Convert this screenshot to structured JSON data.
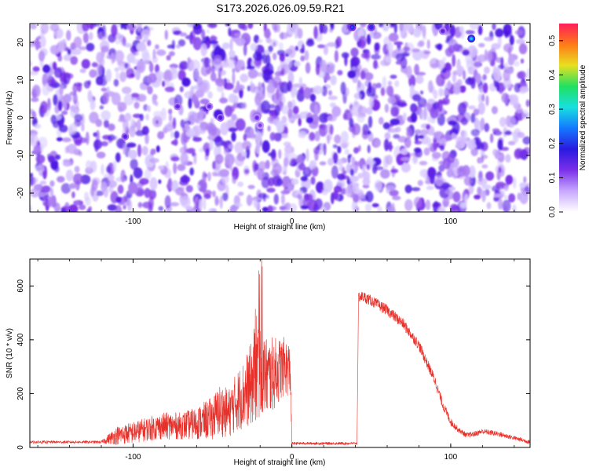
{
  "title": "S173.2026.026.09.59.R21",
  "colors": {
    "snr_line": "#e8302a",
    "colormap": [
      "#ffffff",
      "#c8a8ff",
      "#7a2fe8",
      "#2a1ae0",
      "#1478ff",
      "#18e0e0",
      "#20e060",
      "#e8e020",
      "#ff7a18",
      "#ff1e5a"
    ]
  },
  "chart_data": [
    {
      "type": "heatmap",
      "xlabel": "Height of straight line (km)",
      "ylabel": "Frequency (Hz)",
      "xlim": [
        -165,
        150
      ],
      "ylim": [
        -25,
        25
      ],
      "x_ticks": [
        "-100",
        "0",
        "100"
      ],
      "x_tick_values": [
        -100,
        0,
        100
      ],
      "y_ticks": [
        "-20",
        "-10",
        "0",
        "10",
        "20"
      ],
      "y_tick_values": [
        -20,
        -10,
        0,
        10,
        20
      ],
      "colorbar": {
        "label": "Normalized spectral amplitude",
        "range": [
          0,
          0.55
        ],
        "ticks": [
          "0.0",
          "0.1",
          "0.2",
          "0.3",
          "0.4",
          "0.5"
        ],
        "tick_values": [
          0.0,
          0.1,
          0.2,
          0.3,
          0.4,
          0.5
        ]
      },
      "hotspots": [
        {
          "x": -105,
          "y": -5,
          "value": 0.16
        },
        {
          "x": -72,
          "y": 3,
          "value": 0.15
        },
        {
          "x": -52,
          "y": 3,
          "value": 0.14
        },
        {
          "x": -45,
          "y": 0,
          "value": 0.17
        },
        {
          "x": -22,
          "y": 0,
          "value": 0.14
        },
        {
          "x": -20,
          "y": -2,
          "value": 0.12
        },
        {
          "x": 38,
          "y": 24,
          "value": 0.22
        },
        {
          "x": 50,
          "y": 24,
          "value": 0.2
        },
        {
          "x": 95,
          "y": 23,
          "value": 0.15
        },
        {
          "x": 113,
          "y": 21,
          "value": 0.3
        }
      ]
    },
    {
      "type": "line",
      "xlabel": "Height of straight line (km)",
      "ylabel": "SNR (10 * v/v)",
      "xlim": [
        -165,
        150
      ],
      "ylim": [
        0,
        700
      ],
      "x_ticks": [
        "-100",
        "0",
        "100"
      ],
      "x_tick_values": [
        -100,
        0,
        100
      ],
      "y_ticks": [
        "0",
        "200",
        "400",
        "600"
      ],
      "y_tick_values": [
        0,
        200,
        400,
        600
      ],
      "envelope_x": [
        -165,
        -120,
        -110,
        -100,
        -90,
        -80,
        -70,
        -60,
        -50,
        -45,
        -40,
        -35,
        -30,
        -25,
        -22,
        -20,
        -15,
        -10,
        -5,
        -1,
        0,
        10,
        20,
        30,
        41,
        42,
        45,
        50,
        60,
        70,
        80,
        90,
        95,
        100,
        105,
        110,
        115,
        120,
        125,
        130,
        140,
        150
      ],
      "envelope_y": [
        20,
        20,
        45,
        55,
        70,
        80,
        80,
        90,
        110,
        140,
        125,
        170,
        200,
        240,
        300,
        285,
        260,
        280,
        300,
        290,
        15,
        15,
        15,
        15,
        15,
        560,
        560,
        545,
        510,
        460,
        380,
        250,
        160,
        95,
        65,
        45,
        50,
        60,
        55,
        50,
        35,
        20
      ],
      "noise_amplitude": [
        5,
        5,
        35,
        40,
        45,
        50,
        50,
        60,
        80,
        100,
        90,
        110,
        130,
        160,
        230,
        170,
        150,
        130,
        110,
        100,
        5,
        5,
        5,
        5,
        5,
        20,
        20,
        20,
        20,
        20,
        20,
        20,
        18,
        15,
        10,
        10,
        10,
        10,
        10,
        10,
        8,
        8
      ]
    }
  ]
}
